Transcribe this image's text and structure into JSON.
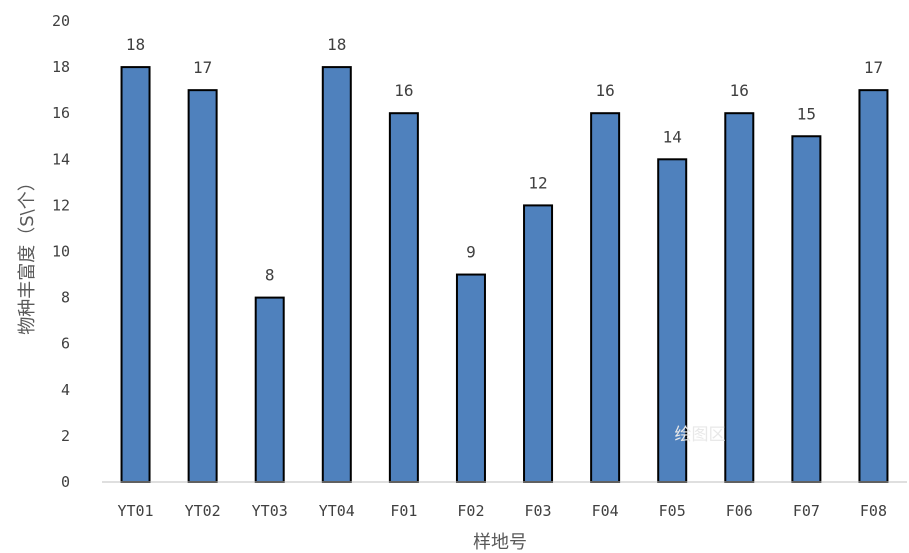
{
  "chart_data": {
    "type": "bar",
    "categories": [
      "YT01",
      "YT02",
      "YT03",
      "YT04",
      "F01",
      "F02",
      "F03",
      "F04",
      "F05",
      "F06",
      "F07",
      "F08"
    ],
    "values": [
      18,
      17,
      8,
      18,
      16,
      9,
      12,
      16,
      14,
      16,
      15,
      17
    ],
    "xlabel": "样地号",
    "ylabel": "物种丰富度（S\\个）",
    "ylim": [
      0,
      20
    ],
    "yticks": [
      0,
      2,
      4,
      6,
      8,
      10,
      12,
      14,
      16,
      18,
      20
    ],
    "bar_color": "#4F81BD",
    "bar_edge_color": "#000000",
    "grid": false,
    "data_labels": true
  },
  "watermark": "绘图区"
}
